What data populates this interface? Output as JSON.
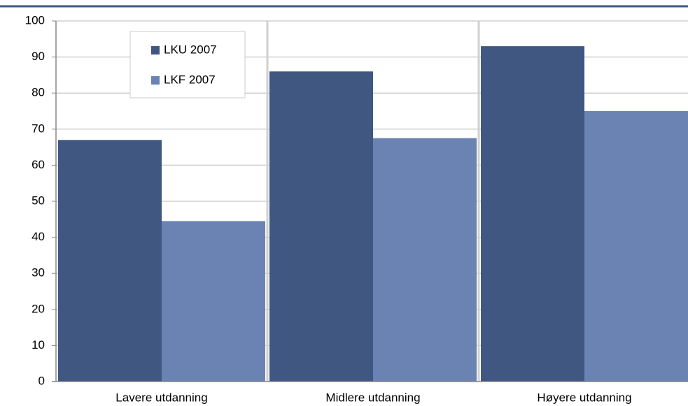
{
  "chart_data": {
    "type": "bar",
    "categories": [
      "Lavere utdanning",
      "Midlere utdanning",
      "Høyere utdanning"
    ],
    "series": [
      {
        "name": "LKU 2007",
        "color": "#3f5781",
        "values": [
          67,
          86,
          93
        ]
      },
      {
        "name": "LKF 2007",
        "color": "#6a83b3",
        "values": [
          44.5,
          67.5,
          75
        ]
      }
    ],
    "ylim": [
      0,
      100
    ],
    "yticks": [
      0,
      10,
      20,
      30,
      40,
      50,
      60,
      70,
      80,
      90,
      100
    ],
    "grid": true
  }
}
